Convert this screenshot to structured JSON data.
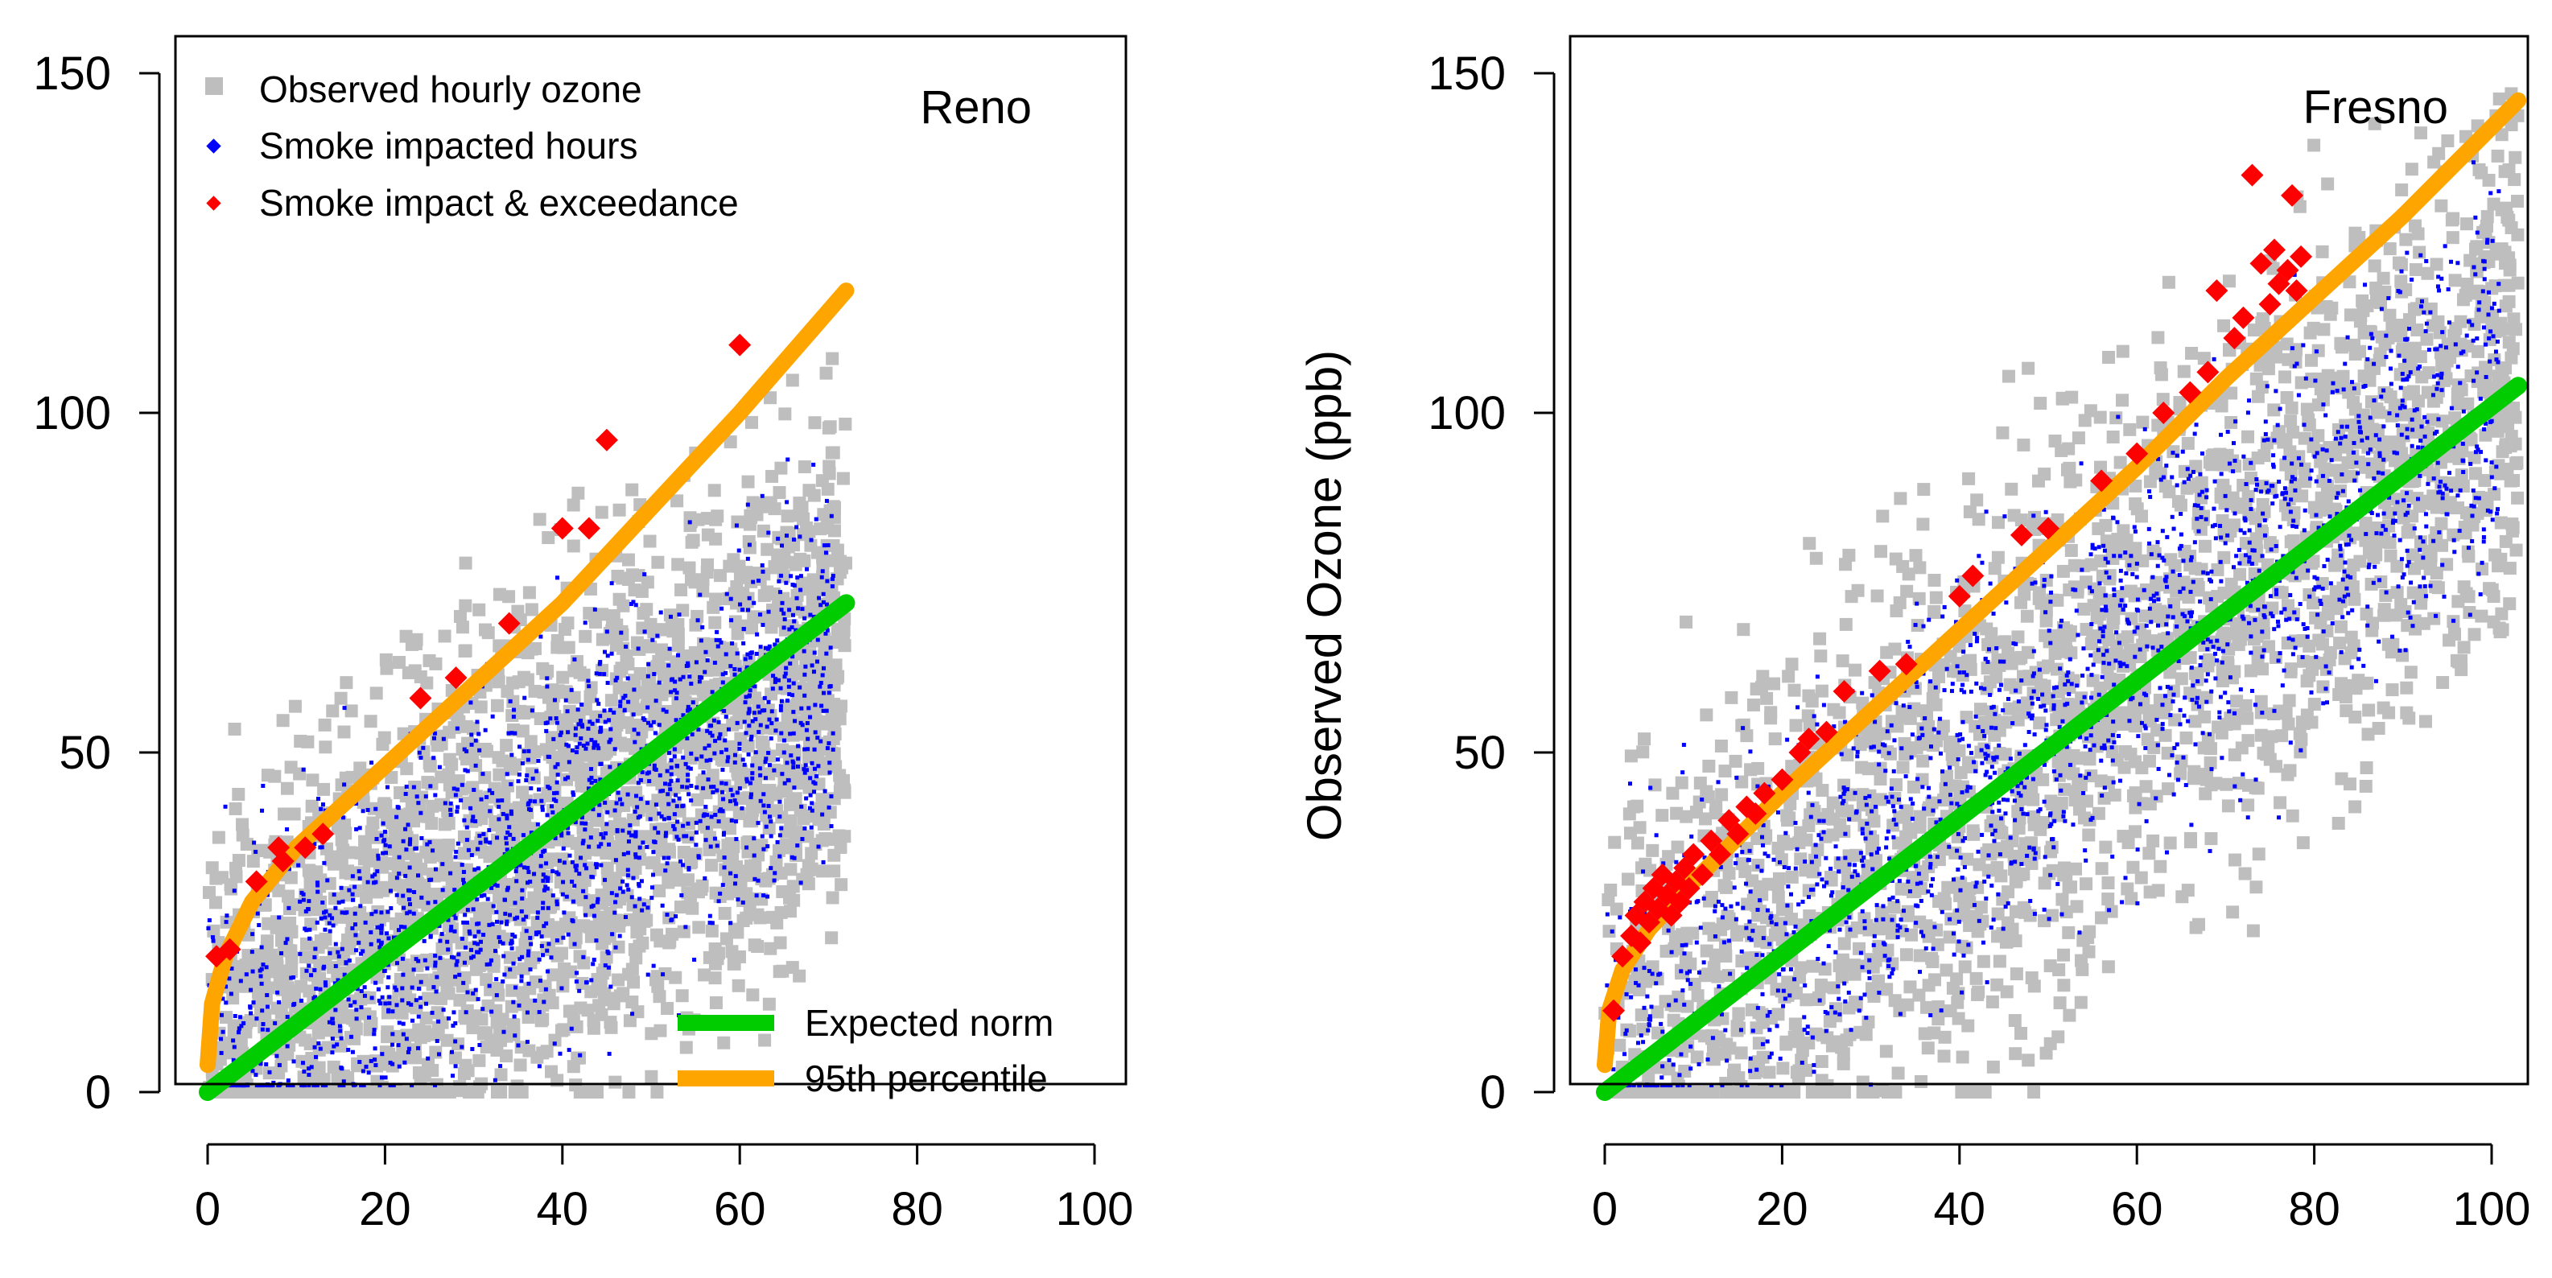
{
  "chart_data": [
    {
      "type": "scatter",
      "title": "Reno",
      "xlabel": "",
      "ylabel": "",
      "xlim": [
        0,
        100
      ],
      "ylim": [
        0,
        150
      ],
      "x_ticks": [
        "0",
        "20",
        "40",
        "60",
        "80",
        "100"
      ],
      "y_ticks": [
        "0",
        "50",
        "100",
        "150"
      ],
      "legend_top": [
        {
          "label": "Observed hourly ozone",
          "color": "#bebebe",
          "marker": "square"
        },
        {
          "label": "Smoke impacted hours",
          "color": "#0000ff",
          "marker": "diamond"
        },
        {
          "label": "Smoke impact & exceedance",
          "color": "#ff0000",
          "marker": "diamond"
        }
      ],
      "legend_bottom": [
        {
          "label": "Expected norm",
          "color": "#00cc00"
        },
        {
          "label": "95th percentile",
          "color": "#ffa500"
        }
      ],
      "cloud": {
        "x_max": 72,
        "base": 6,
        "slope": 0.8,
        "spread": 44,
        "y_min": 0
      },
      "lines": {
        "expected_norm": {
          "x": [
            0,
            72
          ],
          "y": [
            0,
            72
          ]
        },
        "p95": {
          "x": [
            0,
            0.5,
            2,
            5,
            10,
            15,
            20,
            25,
            30,
            40,
            50,
            60,
            72
          ],
          "y": [
            4,
            13,
            20,
            28,
            36,
            42,
            48,
            54,
            60,
            72,
            86,
            100,
            118
          ]
        }
      },
      "exceedance_points": [
        {
          "x": 1,
          "y": 20
        },
        {
          "x": 2.5,
          "y": 21
        },
        {
          "x": 5.5,
          "y": 31
        },
        {
          "x": 8,
          "y": 36
        },
        {
          "x": 8.5,
          "y": 34
        },
        {
          "x": 11,
          "y": 36
        },
        {
          "x": 13,
          "y": 38
        },
        {
          "x": 24,
          "y": 58
        },
        {
          "x": 28,
          "y": 61
        },
        {
          "x": 34,
          "y": 69
        },
        {
          "x": 40,
          "y": 83
        },
        {
          "x": 43,
          "y": 83
        },
        {
          "x": 45,
          "y": 96
        },
        {
          "x": 60,
          "y": 110
        }
      ]
    },
    {
      "type": "scatter",
      "title": "Fresno",
      "xlabel": "",
      "ylabel": "Observed Ozone (ppb)",
      "xlim": [
        0,
        100
      ],
      "ylim": [
        0,
        150
      ],
      "x_ticks": [
        "0",
        "20",
        "40",
        "60",
        "80",
        "100"
      ],
      "y_ticks": [
        "0",
        "50",
        "100",
        "150"
      ],
      "cloud": {
        "x_max": 103,
        "base": 5,
        "slope": 1.0,
        "spread": 48,
        "y_min": 0
      },
      "lines": {
        "expected_norm": {
          "x": [
            0,
            103
          ],
          "y": [
            0,
            104
          ]
        },
        "p95": {
          "x": [
            0,
            0.5,
            2,
            5,
            10,
            20,
            30,
            40,
            50,
            60,
            70,
            80,
            90,
            103
          ],
          "y": [
            4,
            12,
            18,
            24,
            31,
            44,
            56,
            68,
            80,
            92,
            105,
            117,
            129,
            146
          ]
        }
      },
      "exceedance_points": [
        {
          "x": 1,
          "y": 12
        },
        {
          "x": 2,
          "y": 20
        },
        {
          "x": 3,
          "y": 23
        },
        {
          "x": 3.5,
          "y": 26
        },
        {
          "x": 4,
          "y": 22
        },
        {
          "x": 4.5,
          "y": 28
        },
        {
          "x": 5,
          "y": 25
        },
        {
          "x": 5.5,
          "y": 30
        },
        {
          "x": 6,
          "y": 27
        },
        {
          "x": 6.5,
          "y": 32
        },
        {
          "x": 7,
          "y": 29
        },
        {
          "x": 7.5,
          "y": 26
        },
        {
          "x": 8,
          "y": 31
        },
        {
          "x": 8.5,
          "y": 28
        },
        {
          "x": 9,
          "y": 33
        },
        {
          "x": 9.5,
          "y": 30
        },
        {
          "x": 10,
          "y": 35
        },
        {
          "x": 11,
          "y": 32
        },
        {
          "x": 12,
          "y": 37
        },
        {
          "x": 13,
          "y": 35
        },
        {
          "x": 14,
          "y": 40
        },
        {
          "x": 15,
          "y": 38
        },
        {
          "x": 16,
          "y": 42
        },
        {
          "x": 17,
          "y": 41
        },
        {
          "x": 18,
          "y": 44
        },
        {
          "x": 20,
          "y": 46
        },
        {
          "x": 22,
          "y": 50
        },
        {
          "x": 23,
          "y": 52
        },
        {
          "x": 25,
          "y": 53
        },
        {
          "x": 27,
          "y": 59
        },
        {
          "x": 31,
          "y": 62
        },
        {
          "x": 34,
          "y": 63
        },
        {
          "x": 40,
          "y": 73
        },
        {
          "x": 41.5,
          "y": 76
        },
        {
          "x": 47,
          "y": 82
        },
        {
          "x": 50,
          "y": 83
        },
        {
          "x": 56,
          "y": 90
        },
        {
          "x": 60,
          "y": 94
        },
        {
          "x": 63,
          "y": 100
        },
        {
          "x": 66,
          "y": 103
        },
        {
          "x": 68,
          "y": 106
        },
        {
          "x": 69,
          "y": 118
        },
        {
          "x": 71,
          "y": 111
        },
        {
          "x": 72,
          "y": 114
        },
        {
          "x": 73,
          "y": 135
        },
        {
          "x": 74,
          "y": 122
        },
        {
          "x": 75,
          "y": 116
        },
        {
          "x": 75.5,
          "y": 124
        },
        {
          "x": 76,
          "y": 119
        },
        {
          "x": 77,
          "y": 121
        },
        {
          "x": 77.5,
          "y": 132
        },
        {
          "x": 78,
          "y": 118
        },
        {
          "x": 78.5,
          "y": 123
        }
      ]
    }
  ]
}
